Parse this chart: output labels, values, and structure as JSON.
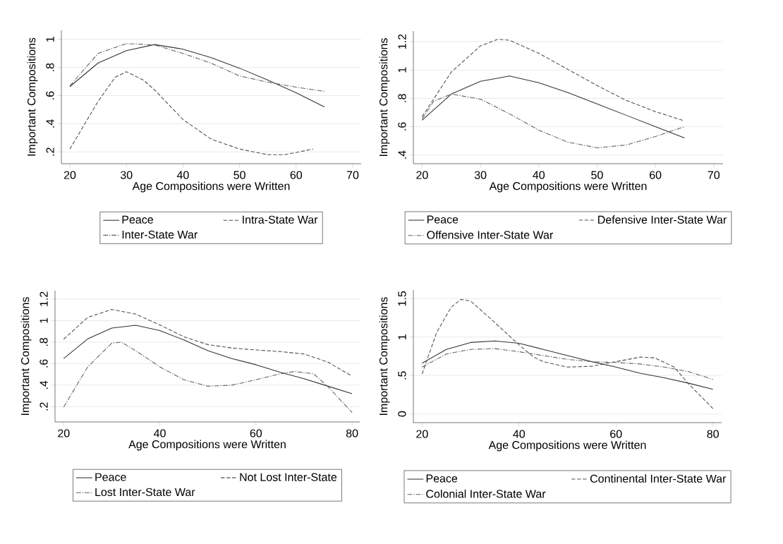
{
  "chart_data": [
    {
      "type": "line",
      "xlabel": "Age Compositions were Written",
      "ylabel": "Important Compositions",
      "xlim": [
        18.5,
        71.5
      ],
      "ylim": [
        0.116,
        1.064
      ],
      "xticks": [
        20,
        30,
        40,
        50,
        60,
        70
      ],
      "yticks": [
        {
          "value": 0.2,
          "label": ".2"
        },
        {
          "value": 0.4,
          "label": ".4"
        },
        {
          "value": 0.6,
          "label": ".6"
        },
        {
          "value": 0.8,
          "label": ".8"
        },
        1
      ],
      "grid": "y",
      "legend": "bottom",
      "series": [
        {
          "name": "Peace",
          "color": "#333333",
          "line_style": "solid",
          "x": [
            20,
            25,
            30,
            35,
            40,
            45,
            50,
            55,
            60,
            65
          ],
          "values": [
            0.664,
            0.832,
            0.92,
            0.963,
            0.93,
            0.87,
            0.795,
            0.71,
            0.62,
            0.52
          ]
        },
        {
          "name": "Intra-State War",
          "color": "#505050",
          "line_style": "dashed",
          "x": [
            20,
            25,
            28,
            30,
            33,
            35,
            40,
            45,
            50,
            55,
            58,
            63
          ],
          "values": [
            0.22,
            0.56,
            0.73,
            0.77,
            0.71,
            0.64,
            0.43,
            0.29,
            0.22,
            0.18,
            0.18,
            0.22
          ]
        },
        {
          "name": "Inter-State War",
          "color": "#606060",
          "line_style": "dashdot",
          "x": [
            20,
            25,
            30,
            35,
            40,
            45,
            50,
            55,
            60,
            65
          ],
          "values": [
            0.67,
            0.9,
            0.97,
            0.96,
            0.9,
            0.83,
            0.74,
            0.695,
            0.66,
            0.63
          ]
        }
      ]
    },
    {
      "type": "line",
      "xlabel": "Age Compositions were Written",
      "ylabel": "Important Compositions",
      "xlim": [
        18.5,
        71.6
      ],
      "ylim": [
        0.338,
        1.275
      ],
      "xticks": [
        20,
        30,
        40,
        50,
        60,
        70
      ],
      "yticks": [
        {
          "value": 0.4,
          "label": ".4"
        },
        {
          "value": 0.6,
          "label": ".6"
        },
        {
          "value": 0.8,
          "label": ".8"
        },
        1,
        1.2
      ],
      "grid": "y",
      "legend": "bottom",
      "series": [
        {
          "name": "Peace",
          "color": "#333333",
          "line_style": "solid",
          "x": [
            20,
            25,
            30,
            35,
            40,
            45,
            50,
            55,
            60,
            65
          ],
          "values": [
            0.645,
            0.83,
            0.92,
            0.957,
            0.91,
            0.84,
            0.76,
            0.68,
            0.6,
            0.52
          ]
        },
        {
          "name": "Defensive Inter-State War",
          "color": "#505050",
          "line_style": "dashed",
          "x": [
            20,
            25,
            30,
            33,
            35,
            40,
            45,
            50,
            55,
            60,
            65
          ],
          "values": [
            0.67,
            0.985,
            1.17,
            1.217,
            1.21,
            1.118,
            1.004,
            0.89,
            0.785,
            0.706,
            0.64
          ]
        },
        {
          "name": "Offensive Inter-State War",
          "color": "#606060",
          "line_style": "dashdot",
          "x": [
            20,
            22,
            25,
            30,
            35,
            40,
            45,
            50,
            55,
            60,
            65
          ],
          "values": [
            0.654,
            0.78,
            0.83,
            0.794,
            0.69,
            0.575,
            0.49,
            0.45,
            0.47,
            0.53,
            0.6
          ]
        }
      ]
    },
    {
      "type": "line",
      "xlabel": "Age Compositions were Written",
      "ylabel": "Important Compositions",
      "xlim": [
        18.2,
        81.6
      ],
      "ylim": [
        0.058,
        1.278
      ],
      "xticks": [
        20,
        40,
        60,
        80
      ],
      "yticks": [
        {
          "value": 0.2,
          "label": ".2"
        },
        {
          "value": 0.4,
          "label": ".4"
        },
        {
          "value": 0.6,
          "label": ".6"
        },
        {
          "value": 0.8,
          "label": ".8"
        },
        1,
        1.2
      ],
      "grid": "y",
      "legend": "bottom",
      "series": [
        {
          "name": "Peace",
          "color": "#333333",
          "line_style": "solid",
          "x": [
            20,
            25,
            30,
            35,
            40,
            45,
            50,
            55,
            60,
            65,
            70,
            75,
            80
          ],
          "values": [
            0.647,
            0.83,
            0.93,
            0.956,
            0.908,
            0.82,
            0.72,
            0.647,
            0.59,
            0.52,
            0.46,
            0.39,
            0.32
          ]
        },
        {
          "name": "Not Lost Inter-State",
          "color": "#505050",
          "line_style": "dashed",
          "x": [
            20,
            25,
            30,
            35,
            40,
            45,
            50,
            55,
            60,
            65,
            70,
            75,
            80
          ],
          "values": [
            0.827,
            1.03,
            1.104,
            1.06,
            0.96,
            0.85,
            0.777,
            0.745,
            0.727,
            0.712,
            0.69,
            0.614,
            0.483
          ]
        },
        {
          "name": "Lost Inter-State War",
          "color": "#606060",
          "line_style": "dashdot",
          "x": [
            20,
            25,
            30,
            32,
            35,
            40,
            45,
            50,
            55,
            60,
            65,
            68,
            72,
            75,
            80
          ],
          "values": [
            0.196,
            0.57,
            0.79,
            0.8,
            0.72,
            0.57,
            0.45,
            0.39,
            0.4,
            0.45,
            0.505,
            0.527,
            0.505,
            0.385,
            0.146
          ]
        }
      ]
    },
    {
      "type": "line",
      "xlabel": "Age Compositions were Written",
      "ylabel": "Important Compositions",
      "xlim": [
        18.2,
        81.8
      ],
      "ylim": [
        -0.113,
        1.613
      ],
      "xticks": [
        20,
        40,
        60,
        80
      ],
      "yticks": [
        0,
        {
          "value": 0.5,
          "label": ".5"
        },
        1,
        1.5
      ],
      "grid": "y",
      "legend": "bottom",
      "series": [
        {
          "name": "Peace",
          "color": "#333333",
          "line_style": "solid",
          "x": [
            20,
            25,
            30,
            35,
            40,
            45,
            50,
            55,
            60,
            65,
            70,
            75,
            80
          ],
          "values": [
            0.66,
            0.84,
            0.93,
            0.95,
            0.92,
            0.84,
            0.76,
            0.68,
            0.61,
            0.53,
            0.47,
            0.4,
            0.32
          ]
        },
        {
          "name": "Continental Inter-State War",
          "color": "#505050",
          "line_style": "dashed",
          "x": [
            20,
            23,
            26,
            28,
            30,
            35,
            40,
            43,
            45,
            50,
            55,
            60,
            65,
            68,
            72,
            75,
            80
          ],
          "values": [
            0.52,
            1.06,
            1.39,
            1.49,
            1.47,
            1.19,
            0.9,
            0.74,
            0.68,
            0.61,
            0.62,
            0.68,
            0.74,
            0.73,
            0.61,
            0.39,
            0.07
          ]
        },
        {
          "name": "Colonial Inter-State War",
          "color": "#606060",
          "line_style": "dashdot",
          "x": [
            20,
            25,
            30,
            35,
            40,
            45,
            50,
            55,
            60,
            65,
            70,
            75,
            80
          ],
          "values": [
            0.61,
            0.78,
            0.84,
            0.85,
            0.81,
            0.76,
            0.71,
            0.68,
            0.67,
            0.65,
            0.61,
            0.55,
            0.45
          ]
        }
      ]
    }
  ]
}
